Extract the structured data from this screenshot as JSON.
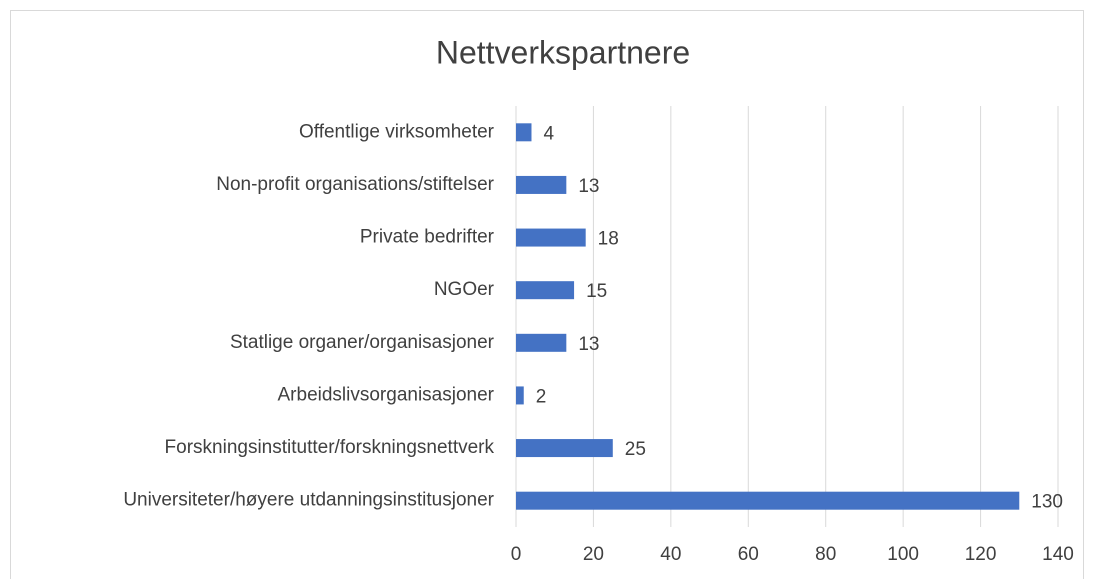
{
  "chart_data": {
    "type": "bar",
    "orientation": "horizontal",
    "title": "Nettverkspartnere",
    "categories": [
      "Offentlige virksomheter",
      "Non-profit organisations/stiftelser",
      "Private bedrifter",
      "NGOer",
      "Statlige organer/organisasjoner",
      "Arbeidslivsorganisasjoner",
      "Forskningsinstitutter/forskningsnettverk",
      "Universiteter/høyere utdanningsinstitusjoner"
    ],
    "values": [
      4,
      13,
      18,
      15,
      13,
      2,
      25,
      130
    ],
    "color": "#4472c4",
    "xlim": [
      0,
      140
    ],
    "xticks": [
      0,
      20,
      40,
      60,
      80,
      100,
      120,
      140
    ],
    "grid": true
  }
}
